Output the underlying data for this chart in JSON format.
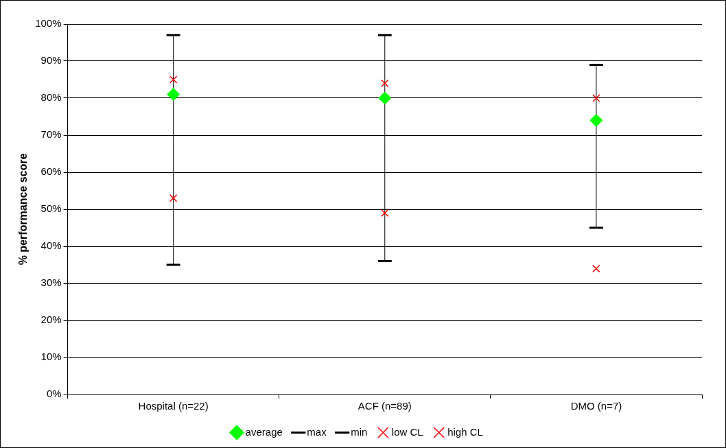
{
  "chart_data": {
    "type": "scatter",
    "ylabel": "% performance score",
    "categories": [
      "Hospital (n=22)",
      "ACF (n=89)",
      "DMO (n=7)"
    ],
    "series": [
      {
        "name": "average",
        "color": "#00ff00",
        "marker": "diamond",
        "values": [
          81,
          80,
          74
        ],
        "errors": [
          [
            35,
            97
          ],
          [
            36,
            97
          ],
          [
            45,
            89
          ]
        ]
      },
      {
        "name": "max",
        "color": "#000000",
        "marker": "none",
        "values": [
          null,
          null,
          null
        ]
      },
      {
        "name": "min",
        "color": "#000000",
        "marker": "none",
        "values": [
          null,
          null,
          null
        ]
      },
      {
        "name": "low CL",
        "color": "#ff0000",
        "marker": "cross",
        "values": [
          53,
          49,
          34
        ]
      },
      {
        "name": "high CL",
        "color": "#ff0000",
        "marker": "cross",
        "values": [
          85,
          84,
          80
        ]
      }
    ],
    "ylim": [
      0,
      100
    ],
    "yticks": [
      {
        "value": 0,
        "label": "0%"
      },
      {
        "value": 10,
        "label": "10%"
      },
      {
        "value": 20,
        "label": "20%"
      },
      {
        "value": 30,
        "label": "30%"
      },
      {
        "value": 40,
        "label": "40%"
      },
      {
        "value": 50,
        "label": "50%"
      },
      {
        "value": 60,
        "label": "60%"
      },
      {
        "value": 70,
        "label": "70%"
      },
      {
        "value": 80,
        "label": "80%"
      },
      {
        "value": 90,
        "label": "90%"
      },
      {
        "value": 100,
        "label": "100%"
      }
    ],
    "grid": "y",
    "legend": "bottom"
  }
}
